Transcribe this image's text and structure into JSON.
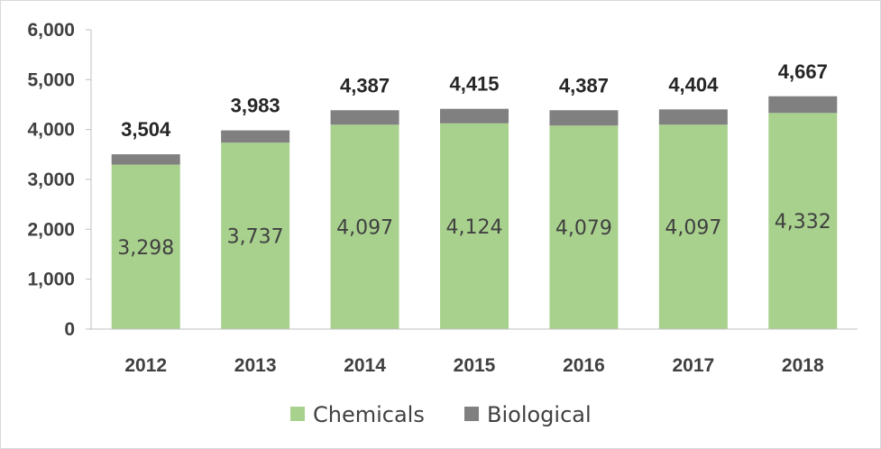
{
  "chart_data": {
    "type": "bar",
    "stacked": true,
    "categories": [
      "2012",
      "2013",
      "2014",
      "2015",
      "2016",
      "2017",
      "2018"
    ],
    "series": [
      {
        "name": "Chemicals",
        "color": "#a9d18e",
        "values": [
          3298,
          3737,
          4097,
          4124,
          4079,
          4097,
          4332
        ]
      },
      {
        "name": "Biological",
        "color": "#808080",
        "values": [
          206,
          246,
          290,
          291,
          308,
          307,
          335
        ]
      }
    ],
    "segment_labels": [
      "3,298",
      "3,737",
      "4,097",
      "4,124",
      "4,079",
      "4,097",
      "4,332"
    ],
    "totals": [
      3504,
      3983,
      4387,
      4415,
      4387,
      4404,
      4667
    ],
    "total_labels": [
      "3,504",
      "3,983",
      "4,387",
      "4,415",
      "4,387",
      "4,404",
      "4,667"
    ],
    "ylim": [
      0,
      6000
    ],
    "yticks": [
      0,
      1000,
      2000,
      3000,
      4000,
      5000,
      6000
    ],
    "ytick_labels": [
      "0",
      "1,000",
      "2,000",
      "3,000",
      "4,000",
      "5,000",
      "6,000"
    ],
    "grid": false,
    "legend_position": "bottom"
  }
}
